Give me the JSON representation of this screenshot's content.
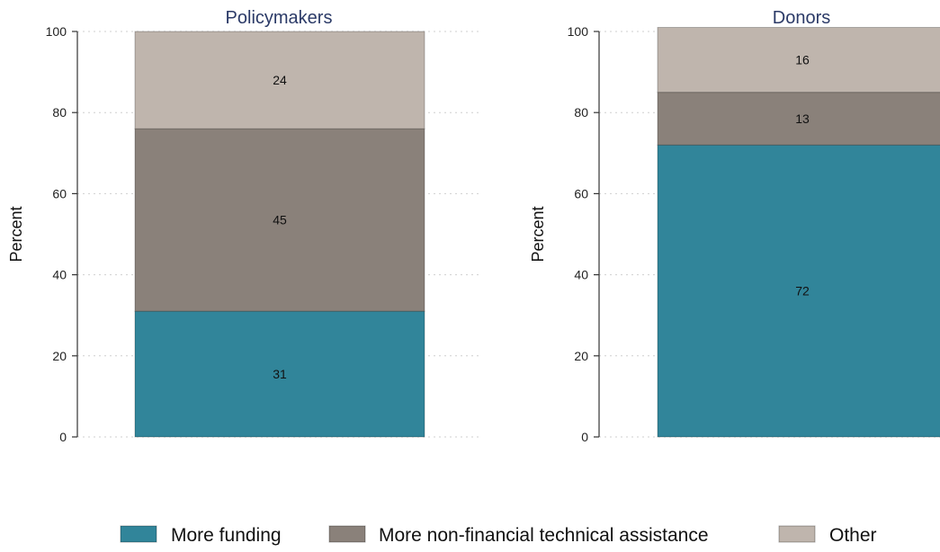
{
  "chart_data": [
    {
      "type": "bar",
      "stacked": true,
      "title": "Policymakers",
      "ylabel": "Percent",
      "ylim": [
        0,
        100
      ],
      "yticks": [
        0,
        20,
        40,
        60,
        80,
        100
      ],
      "grid": true,
      "categories": [
        ""
      ],
      "series": [
        {
          "name": "More funding",
          "values": [
            31
          ]
        },
        {
          "name": "More non-financial technical assistance",
          "values": [
            45
          ]
        },
        {
          "name": "Other",
          "values": [
            24
          ]
        }
      ]
    },
    {
      "type": "bar",
      "stacked": true,
      "title": "Donors",
      "ylabel": "Percent",
      "ylim": [
        0,
        100
      ],
      "yticks": [
        0,
        20,
        40,
        60,
        80,
        100
      ],
      "grid": true,
      "categories": [
        ""
      ],
      "series": [
        {
          "name": "More funding",
          "values": [
            72
          ]
        },
        {
          "name": "More non-financial technical assistance",
          "values": [
            13
          ]
        },
        {
          "name": "Other",
          "values": [
            16
          ]
        }
      ]
    }
  ],
  "legend": {
    "position": "bottom",
    "items": [
      "More funding",
      "More non-financial technical assistance",
      "Other"
    ]
  },
  "colors": {
    "More funding": "#31859a",
    "More non-financial technical assistance": "#8a817a",
    "Other": "#bfb5ad",
    "title": "#2b3a67",
    "grid": "#cfcfcf",
    "axis": "#333333"
  }
}
